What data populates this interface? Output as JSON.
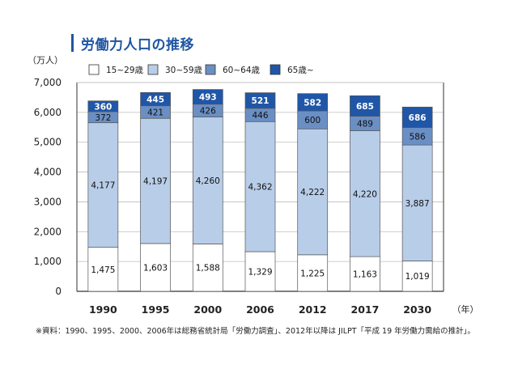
{
  "title": "労働力人口の推移",
  "note": "※資料：1990、1995、2000、2006年は総務省統計局「労働力調査」、2012年以降は JILPT「平成 19 年労働力需給の推計」。",
  "chart_data": {
    "type": "bar",
    "stacked": true,
    "title": "労働力人口の推移",
    "ylabel": "（万人）",
    "xlabel": "（年）",
    "ylim": [
      0,
      7000
    ],
    "yticks": [
      "0",
      "1,000",
      "2,000",
      "3,000",
      "4,000",
      "5,000",
      "6,000",
      "7,000"
    ],
    "grid": true,
    "legend_position": "top",
    "categories": [
      "1990",
      "1995",
      "2000",
      "2006",
      "2012",
      "2017",
      "2030"
    ],
    "series": [
      {
        "name": "15~29歳",
        "color": "#ffffff",
        "values": [
          1475,
          1603,
          1588,
          1329,
          1225,
          1163,
          1019
        ],
        "labels": [
          "1,475",
          "1,603",
          "1,588",
          "1,329",
          "1,225",
          "1,163",
          "1,019"
        ]
      },
      {
        "name": "30~59歳",
        "color": "#b8cde8",
        "values": [
          4177,
          4197,
          4260,
          4362,
          4222,
          4220,
          3887
        ],
        "labels": [
          "4,177",
          "4,197",
          "4,260",
          "4,362",
          "4,222",
          "4,220",
          "3,887"
        ]
      },
      {
        "name": "60~64歳",
        "color": "#6a8fc4",
        "values": [
          372,
          421,
          426,
          446,
          600,
          489,
          586
        ],
        "labels": [
          "372",
          "421",
          "426",
          "446",
          "600",
          "489",
          "586"
        ]
      },
      {
        "name": "65歳~",
        "color": "#1f56a8",
        "values": [
          360,
          445,
          493,
          521,
          582,
          685,
          686
        ],
        "labels": [
          "360",
          "445",
          "493",
          "521",
          "582",
          "685",
          "686"
        ]
      }
    ]
  }
}
